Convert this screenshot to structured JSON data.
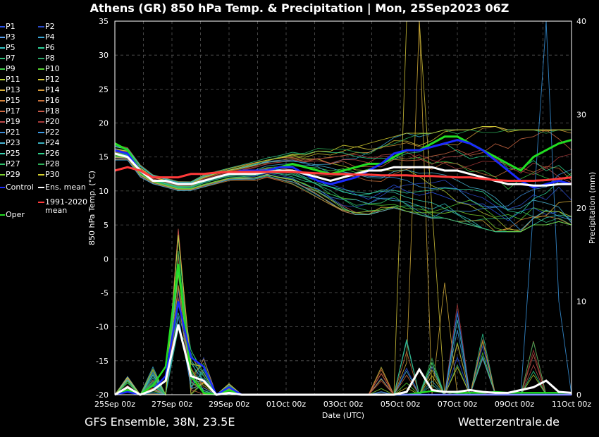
{
  "header": {
    "title": "Athens  (GR)  850 hPa Temp. & Precipitation | Mon, 25Sep2023 06Z"
  },
  "footer": {
    "left": "GFS Ensemble, 38N, 23.5E",
    "right": "Wetterzentrale.de"
  },
  "chart_data": {
    "type": "line",
    "xlabel": "Date (UTC)",
    "ylabel_left": "850 hPa Temp. (°C)",
    "ylabel_right": "Precipitation (mm)",
    "xlim": [
      0,
      16
    ],
    "ylim_left": [
      -20,
      35
    ],
    "ylim_right": [
      0,
      40
    ],
    "x_ticks": [
      {
        "day": 0,
        "label": "25Sep 00z"
      },
      {
        "day": 2,
        "label": "27Sep 00z"
      },
      {
        "day": 4,
        "label": "29Sep 00z"
      },
      {
        "day": 6,
        "label": "01Oct 00z"
      },
      {
        "day": 8,
        "label": "03Oct 00z"
      },
      {
        "day": 10,
        "label": "05Oct 00z"
      },
      {
        "day": 12,
        "label": "07Oct 00z"
      },
      {
        "day": 14,
        "label": "09Oct 00z"
      },
      {
        "day": 16,
        "label": "11Oct 00z"
      }
    ],
    "y_ticks_left": [
      35,
      30,
      25,
      20,
      15,
      10,
      5,
      0,
      -5,
      -10,
      -15,
      -20
    ],
    "y_ticks_right": [
      40,
      30,
      20,
      10,
      0
    ],
    "grid": true,
    "legend": [
      {
        "name": "P1",
        "color": "#2a52e8"
      },
      {
        "name": "P2",
        "color": "#2a4ac8"
      },
      {
        "name": "P3",
        "color": "#5aa0f0"
      },
      {
        "name": "P4",
        "color": "#3aa6d6"
      },
      {
        "name": "P5",
        "color": "#35c6c6"
      },
      {
        "name": "P6",
        "color": "#2ed39a"
      },
      {
        "name": "P7",
        "color": "#2ec07a"
      },
      {
        "name": "P8",
        "color": "#2aa86a"
      },
      {
        "name": "P9",
        "color": "#3ed04a"
      },
      {
        "name": "P10",
        "color": "#56d432"
      },
      {
        "name": "P11",
        "color": "#b8d232"
      },
      {
        "name": "P12",
        "color": "#d6c83a"
      },
      {
        "name": "P13",
        "color": "#d8b03a"
      },
      {
        "name": "P14",
        "color": "#d69a3a"
      },
      {
        "name": "P15",
        "color": "#d8843a"
      },
      {
        "name": "P16",
        "color": "#c8703a"
      },
      {
        "name": "P17",
        "color": "#d06a44"
      },
      {
        "name": "P18",
        "color": "#c85a4a"
      },
      {
        "name": "P19",
        "color": "#c04a4a"
      },
      {
        "name": "P20",
        "color": "#a83a3a"
      },
      {
        "name": "P21",
        "color": "#3a8ad6"
      },
      {
        "name": "P22",
        "color": "#3a9ae6"
      },
      {
        "name": "P23",
        "color": "#4ab6d6"
      },
      {
        "name": "P24",
        "color": "#3ab0c0"
      },
      {
        "name": "P25",
        "color": "#3ad0b0"
      },
      {
        "name": "P26",
        "color": "#2ed08a"
      },
      {
        "name": "P27",
        "color": "#2ec06a"
      },
      {
        "name": "P28",
        "color": "#2eb05a"
      },
      {
        "name": "P29",
        "color": "#7ad02e"
      },
      {
        "name": "P30",
        "color": "#d6d02e"
      },
      {
        "name": "Control",
        "color": "#1a2aff"
      },
      {
        "name": "Ens. mean",
        "color": "#ffffff"
      },
      {
        "name": "1991-2020 mean",
        "color": "#ff3a3a"
      },
      {
        "name": "Oper",
        "color": "#22dd22"
      }
    ],
    "series_temp": [
      {
        "name": "Oper",
        "values": [
          17,
          16,
          13,
          11.5,
          11.5,
          11,
          11,
          11.5,
          12,
          12.5,
          13,
          13,
          13,
          13.5,
          14,
          13.5,
          13,
          12.5,
          13,
          13.5,
          14,
          14,
          15,
          16,
          16,
          17,
          18,
          18,
          17,
          16,
          15,
          14,
          13,
          15,
          16,
          17,
          17.5
        ]
      },
      {
        "name": "Control",
        "values": [
          16,
          15.5,
          13,
          11.5,
          11.5,
          11,
          11,
          11.5,
          12,
          12.5,
          13,
          13,
          13,
          13.5,
          13.5,
          12.5,
          11.5,
          11,
          11.5,
          12,
          13,
          14,
          15.5,
          16,
          16,
          16.5,
          17,
          17.5,
          17,
          16,
          14.5,
          13,
          11.5,
          10.5,
          11,
          11.5,
          11
        ]
      },
      {
        "name": "Ens. mean",
        "values": [
          15.5,
          15,
          13,
          11.5,
          11.5,
          11,
          11,
          11.5,
          12,
          12.5,
          12.5,
          12.5,
          12.8,
          13,
          13,
          12.5,
          12,
          11.5,
          12,
          12.5,
          13,
          13,
          13.5,
          13.5,
          13.5,
          13.5,
          13,
          13,
          12.5,
          12,
          11.5,
          11,
          11,
          10.8,
          10.8,
          11,
          11
        ]
      },
      {
        "name": "1991-2020 mean",
        "values": [
          13,
          13.5,
          13,
          12,
          12,
          12,
          12.5,
          12.5,
          12.7,
          12.8,
          12.8,
          12.8,
          12.8,
          12.8,
          12.8,
          12.7,
          12.6,
          12.5,
          12.5,
          12.4,
          12.4,
          12.3,
          12.3,
          12.3,
          12.2,
          12.2,
          12.1,
          12.0,
          12.0,
          11.8,
          11.6,
          11.5,
          11.5,
          11.5,
          11.6,
          11.8,
          12.0
        ]
      }
    ],
    "series_precip": [
      {
        "name": "Oper",
        "values": [
          0,
          0.5,
          0,
          1,
          3,
          14,
          2,
          0.2,
          0,
          0.5,
          0,
          0,
          0,
          0,
          0,
          0,
          0,
          0,
          0,
          0,
          0,
          0,
          0,
          0,
          0.2,
          0.4,
          0.3,
          0.2,
          0.2,
          0.2,
          0.3,
          0.2,
          0.2,
          0.2,
          0.2,
          0.2,
          0.2
        ]
      },
      {
        "name": "Control",
        "values": [
          0,
          0.3,
          0,
          0.5,
          2,
          10,
          4,
          3,
          0,
          0.8,
          0,
          0,
          0,
          0,
          0,
          0,
          0,
          0,
          0,
          0,
          0,
          0,
          0,
          0,
          0,
          0,
          0,
          0,
          0,
          0,
          0,
          0,
          0,
          0,
          0,
          0,
          0
        ]
      },
      {
        "name": "Ens. mean",
        "values": [
          0,
          0.8,
          0,
          0.5,
          1.5,
          7.5,
          2,
          1.5,
          0,
          0.2,
          0,
          0,
          0,
          0,
          0,
          0,
          0,
          0,
          0,
          0,
          0,
          0,
          0,
          0.3,
          2.7,
          0.5,
          0.3,
          0.3,
          0.5,
          0.3,
          0.2,
          0.2,
          0.5,
          0.8,
          1.5,
          0.3,
          0.2
        ]
      }
    ],
    "member_spread_temp": {
      "upper": [
        17,
        16.5,
        14,
        12.5,
        12,
        11.5,
        11.5,
        12.5,
        13,
        13.5,
        14,
        14.5,
        15,
        15.5,
        16,
        16,
        16.5,
        16.5,
        17,
        17,
        17,
        17.5,
        18,
        18.5,
        18.5,
        18.5,
        19,
        19,
        19,
        19.5,
        19.5,
        19,
        19,
        19,
        19,
        19,
        19
      ],
      "lower": [
        14.5,
        14.5,
        12,
        11,
        10.5,
        10,
        10,
        10.5,
        11,
        11.5,
        11.5,
        11.5,
        12,
        11.5,
        11,
        10,
        9,
        8,
        7,
        6.5,
        6.5,
        7,
        7.5,
        7,
        6.5,
        6,
        6,
        5.5,
        5,
        4.5,
        4,
        4,
        4,
        5,
        5,
        5.5,
        5
      ]
    }
  }
}
